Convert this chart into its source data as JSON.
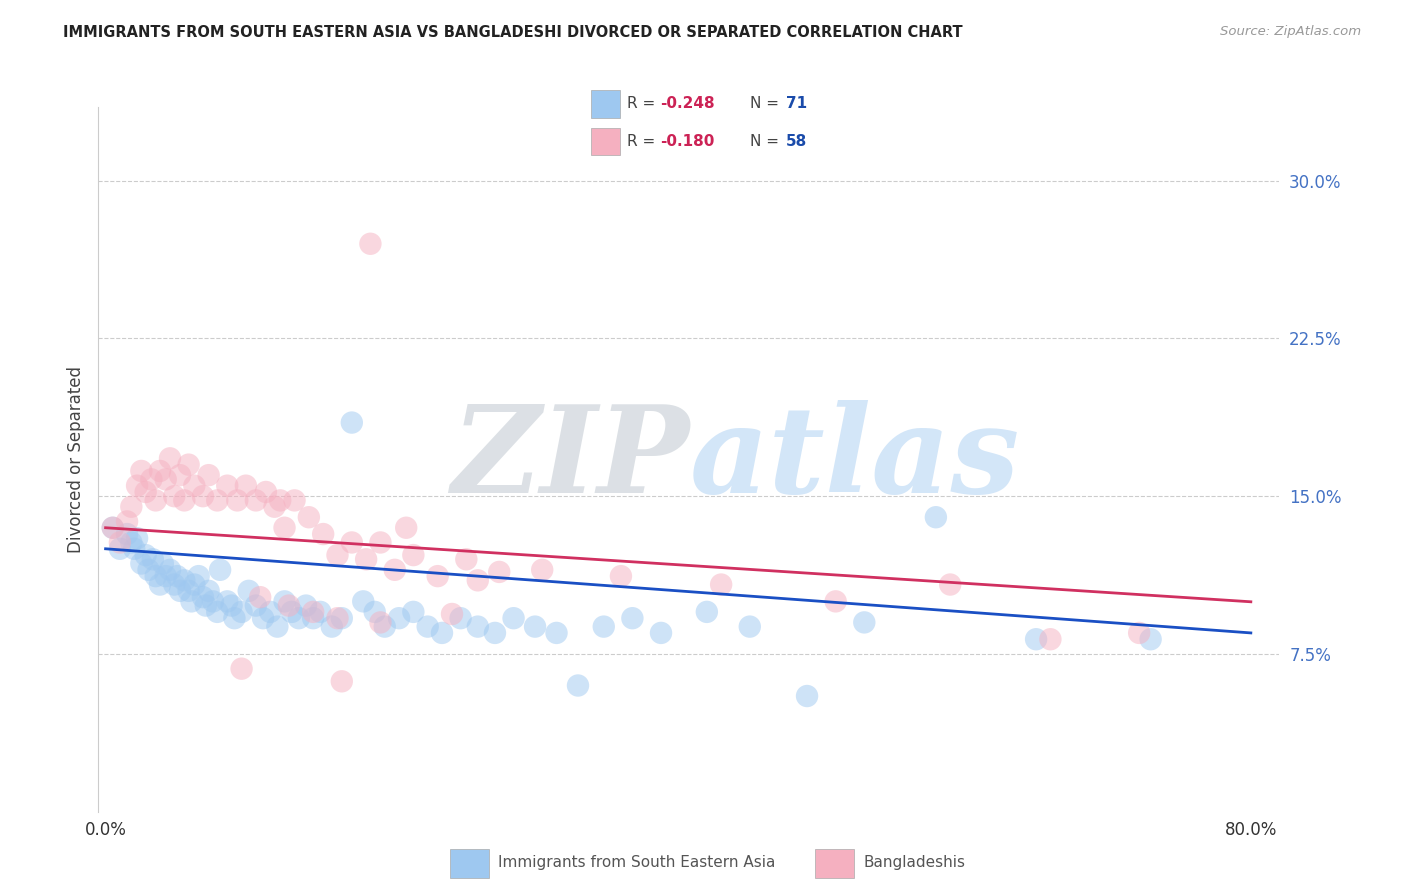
{
  "title": "IMMIGRANTS FROM SOUTH EASTERN ASIA VS BANGLADESHI DIVORCED OR SEPARATED CORRELATION CHART",
  "source": "Source: ZipAtlas.com",
  "ylabel": "Divorced or Separated",
  "ytick_vals": [
    0.075,
    0.15,
    0.225,
    0.3
  ],
  "ytick_labels": [
    "7.5%",
    "15.0%",
    "22.5%",
    "30.0%"
  ],
  "xtick_vals": [
    0.0,
    0.8
  ],
  "xtick_labels": [
    "0.0%",
    "80.0%"
  ],
  "xlim": [
    -0.005,
    0.82
  ],
  "ylim": [
    0.0,
    0.335
  ],
  "blue_color": "#9EC8F0",
  "pink_color": "#F5B0C0",
  "blue_line_color": "#1A4FC4",
  "pink_line_color": "#D03060",
  "r_color": "#CC2255",
  "n_color": "#1A4BAA",
  "text_color": "#444444",
  "tick_color": "#4472C4",
  "watermark_color": "#C8D8EC",
  "watermark_text": "ZIPatlas",
  "legend_label_blue": "Immigrants from South Eastern Asia",
  "legend_label_pink": "Bangladeshis",
  "blue_r": "-0.248",
  "blue_n": "71",
  "pink_r": "-0.180",
  "pink_n": "58",
  "blue_scatter_x": [
    0.005,
    0.01,
    0.015,
    0.018,
    0.02,
    0.022,
    0.025,
    0.028,
    0.03,
    0.033,
    0.035,
    0.038,
    0.04,
    0.042,
    0.045,
    0.048,
    0.05,
    0.052,
    0.055,
    0.058,
    0.06,
    0.062,
    0.065,
    0.068,
    0.07,
    0.072,
    0.075,
    0.078,
    0.08,
    0.085,
    0.088,
    0.09,
    0.095,
    0.1,
    0.105,
    0.11,
    0.115,
    0.12,
    0.125,
    0.13,
    0.135,
    0.14,
    0.145,
    0.15,
    0.158,
    0.165,
    0.172,
    0.18,
    0.188,
    0.195,
    0.205,
    0.215,
    0.225,
    0.235,
    0.248,
    0.26,
    0.272,
    0.285,
    0.3,
    0.315,
    0.33,
    0.348,
    0.368,
    0.388,
    0.42,
    0.45,
    0.49,
    0.53,
    0.58,
    0.65,
    0.73
  ],
  "blue_scatter_y": [
    0.135,
    0.125,
    0.132,
    0.128,
    0.125,
    0.13,
    0.118,
    0.122,
    0.115,
    0.12,
    0.112,
    0.108,
    0.118,
    0.112,
    0.115,
    0.108,
    0.112,
    0.105,
    0.11,
    0.105,
    0.1,
    0.108,
    0.112,
    0.102,
    0.098,
    0.105,
    0.1,
    0.095,
    0.115,
    0.1,
    0.098,
    0.092,
    0.095,
    0.105,
    0.098,
    0.092,
    0.095,
    0.088,
    0.1,
    0.095,
    0.092,
    0.098,
    0.092,
    0.095,
    0.088,
    0.092,
    0.185,
    0.1,
    0.095,
    0.088,
    0.092,
    0.095,
    0.088,
    0.085,
    0.092,
    0.088,
    0.085,
    0.092,
    0.088,
    0.085,
    0.06,
    0.088,
    0.092,
    0.085,
    0.095,
    0.088,
    0.055,
    0.09,
    0.14,
    0.082,
    0.082
  ],
  "pink_scatter_x": [
    0.005,
    0.01,
    0.015,
    0.018,
    0.022,
    0.025,
    0.028,
    0.032,
    0.035,
    0.038,
    0.042,
    0.045,
    0.048,
    0.052,
    0.055,
    0.058,
    0.062,
    0.068,
    0.072,
    0.078,
    0.085,
    0.092,
    0.098,
    0.105,
    0.112,
    0.118,
    0.125,
    0.132,
    0.142,
    0.152,
    0.162,
    0.172,
    0.182,
    0.192,
    0.202,
    0.215,
    0.232,
    0.252,
    0.275,
    0.185,
    0.095,
    0.128,
    0.165,
    0.21,
    0.26,
    0.108,
    0.145,
    0.192,
    0.242,
    0.305,
    0.36,
    0.43,
    0.51,
    0.59,
    0.66,
    0.722,
    0.122,
    0.162
  ],
  "pink_scatter_y": [
    0.135,
    0.128,
    0.138,
    0.145,
    0.155,
    0.162,
    0.152,
    0.158,
    0.148,
    0.162,
    0.158,
    0.168,
    0.15,
    0.16,
    0.148,
    0.165,
    0.155,
    0.15,
    0.16,
    0.148,
    0.155,
    0.148,
    0.155,
    0.148,
    0.152,
    0.145,
    0.135,
    0.148,
    0.14,
    0.132,
    0.122,
    0.128,
    0.12,
    0.128,
    0.115,
    0.122,
    0.112,
    0.12,
    0.114,
    0.27,
    0.068,
    0.098,
    0.062,
    0.135,
    0.11,
    0.102,
    0.095,
    0.09,
    0.094,
    0.115,
    0.112,
    0.108,
    0.1,
    0.108,
    0.082,
    0.085,
    0.148,
    0.092
  ]
}
